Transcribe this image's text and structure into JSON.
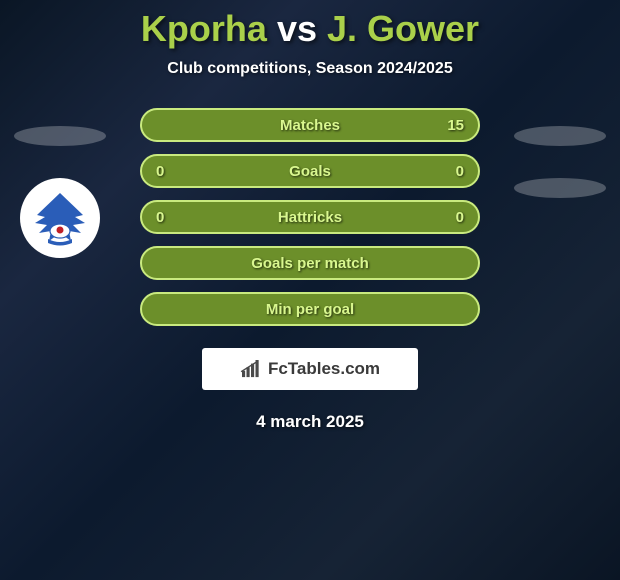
{
  "title": {
    "player1": "Kporha",
    "vs": "vs",
    "player2": "J. Gower",
    "player1_color": "#aad04a",
    "vs_color": "#ffffff",
    "player2_color": "#aad04a"
  },
  "subtitle": "Club competitions, Season 2024/2025",
  "stats": {
    "row_bg": "#6c8f2a",
    "row_border": "#c9ea7f",
    "text_color": "#d9f78f",
    "rows": [
      {
        "label": "Matches",
        "left": "",
        "right": "15"
      },
      {
        "label": "Goals",
        "left": "0",
        "right": "0"
      },
      {
        "label": "Hattricks",
        "left": "0",
        "right": "0"
      },
      {
        "label": "Goals per match",
        "left": "",
        "right": ""
      },
      {
        "label": "Min per goal",
        "left": "",
        "right": ""
      }
    ]
  },
  "badge": {
    "text": "FcTables.com",
    "bar_color": "#4a4a4a"
  },
  "date": "4 march 2025",
  "club_left": {
    "outer_bg": "#ffffff",
    "eagle_color": "#2a5db8",
    "banner_color": "#c02128"
  }
}
